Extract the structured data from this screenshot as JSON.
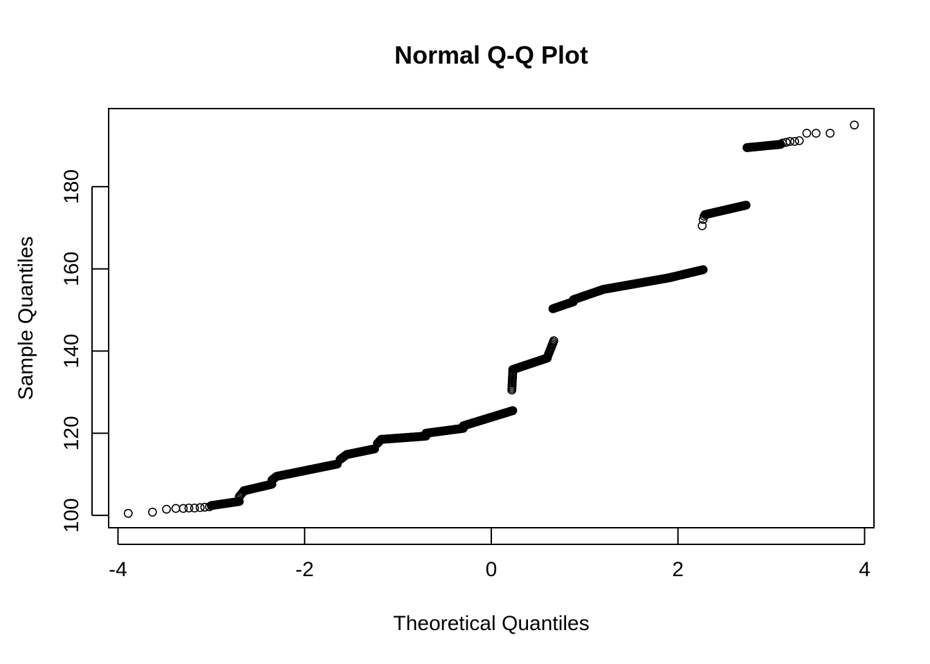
{
  "chart_data": {
    "type": "scatter",
    "title": "Normal Q-Q Plot",
    "xlabel": "Theoretical Quantiles",
    "ylabel": "Sample Quantiles",
    "xlim": [
      -4.1,
      4.1
    ],
    "ylim": [
      97,
      199
    ],
    "x_ticks": [
      -4,
      -2,
      0,
      2,
      4
    ],
    "x_tick_labels": [
      "-4",
      "-2",
      "0",
      "2",
      "4"
    ],
    "y_ticks": [
      100,
      120,
      140,
      160,
      180
    ],
    "y_tick_labels": [
      "100",
      "120",
      "140",
      "160",
      "180"
    ],
    "grid": false,
    "legend": "none",
    "marker": "open-circle",
    "colors": {
      "points": "#000000",
      "axes": "#000000",
      "background": "#ffffff"
    },
    "segments": [
      {
        "x": [
          -3.89,
          -3.63,
          -3.48,
          -3.38,
          -3.3,
          -3.24,
          -3.18,
          -3.12,
          -3.07,
          -3.02
        ],
        "y": [
          100.5,
          100.8,
          101.5,
          101.7,
          101.7,
          101.8,
          101.8,
          101.9,
          102.0,
          102.1
        ]
      },
      {
        "x_from": -3.0,
        "x_to": -2.7,
        "y_from": 102.4,
        "y_to": 103.4,
        "n": 30
      },
      {
        "x_from": -2.7,
        "x_to": -2.65,
        "y_from": 104.6,
        "y_to": 106.0,
        "n": 6
      },
      {
        "x_from": -2.65,
        "x_to": -2.35,
        "y_from": 106.0,
        "y_to": 107.6,
        "n": 40
      },
      {
        "x_from": -2.35,
        "x_to": -2.3,
        "y_from": 108.6,
        "y_to": 109.5,
        "n": 6
      },
      {
        "x_from": -2.3,
        "x_to": -1.65,
        "y_from": 109.5,
        "y_to": 112.5,
        "n": 80
      },
      {
        "x_from": -1.62,
        "x_to": -1.55,
        "y_from": 113.6,
        "y_to": 114.8,
        "n": 8
      },
      {
        "x_from": -1.55,
        "x_to": -1.25,
        "y_from": 114.8,
        "y_to": 116.2,
        "n": 40
      },
      {
        "x_from": -1.22,
        "x_to": -1.18,
        "y_from": 117.5,
        "y_to": 118.5,
        "n": 6
      },
      {
        "x_from": -1.18,
        "x_to": -0.7,
        "y_from": 118.5,
        "y_to": 119.3,
        "n": 60
      },
      {
        "x_from": -0.7,
        "x_to": -0.3,
        "y_from": 120.0,
        "y_to": 121.2,
        "n": 50
      },
      {
        "x_from": -0.3,
        "x_to": 0.23,
        "y_from": 121.8,
        "y_to": 125.5,
        "n": 70
      },
      {
        "x_from": 0.22,
        "x_to": 0.23,
        "y_from": 130.5,
        "y_to": 135.0,
        "n": 12
      },
      {
        "x_from": 0.23,
        "x_to": 0.6,
        "y_from": 135.5,
        "y_to": 138.3,
        "n": 50
      },
      {
        "x_from": 0.6,
        "x_to": 0.67,
        "y_from": 138.5,
        "y_to": 142.5,
        "n": 12
      },
      {
        "x_from": 0.66,
        "x_to": 0.88,
        "y_from": 150.3,
        "y_to": 152.0,
        "n": 30
      },
      {
        "x_from": 0.88,
        "x_to": 1.2,
        "y_from": 152.5,
        "y_to": 155.0,
        "n": 40
      },
      {
        "x_from": 1.2,
        "x_to": 1.9,
        "y_from": 155.0,
        "y_to": 157.8,
        "n": 80
      },
      {
        "x_from": 1.9,
        "x_to": 2.27,
        "y_from": 157.8,
        "y_to": 159.8,
        "n": 50
      },
      {
        "x": [
          2.26,
          2.27,
          2.28
        ],
        "y": [
          170.5,
          172.0,
          172.8
        ]
      },
      {
        "x_from": 2.29,
        "x_to": 2.73,
        "y_from": 173.2,
        "y_to": 175.5,
        "n": 50
      },
      {
        "x_from": 2.74,
        "x_to": 3.1,
        "y_from": 189.5,
        "y_to": 190.3,
        "n": 40
      },
      {
        "x": [
          3.12,
          3.16,
          3.2,
          3.25,
          3.3,
          3.38,
          3.48,
          3.63,
          3.89
        ],
        "y": [
          190.6,
          190.8,
          191.0,
          191.0,
          191.2,
          193.0,
          193.0,
          193.0,
          195.0
        ]
      }
    ]
  }
}
